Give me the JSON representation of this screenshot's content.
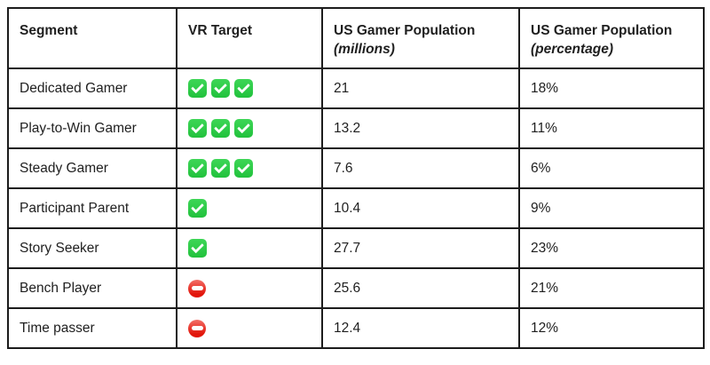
{
  "chart_data": {
    "type": "table",
    "columns": [
      {
        "label": "Segment",
        "sublabel": ""
      },
      {
        "label": "VR Target",
        "sublabel": ""
      },
      {
        "label": "US Gamer Population",
        "sublabel": "(millions)"
      },
      {
        "label": "US Gamer Population",
        "sublabel": "(percentage)"
      }
    ],
    "rows": [
      {
        "segment": "Dedicated Gamer",
        "vr_target": {
          "icon": "check",
          "count": 3
        },
        "millions": "21",
        "percentage": "18%"
      },
      {
        "segment": "Play-to-Win Gamer",
        "vr_target": {
          "icon": "check",
          "count": 3
        },
        "millions": "13.2",
        "percentage": "11%"
      },
      {
        "segment": "Steady Gamer",
        "vr_target": {
          "icon": "check",
          "count": 3
        },
        "millions": "7.6",
        "percentage": "6%"
      },
      {
        "segment": "Participant Parent",
        "vr_target": {
          "icon": "check",
          "count": 1
        },
        "millions": "10.4",
        "percentage": "9%"
      },
      {
        "segment": "Story Seeker",
        "vr_target": {
          "icon": "check",
          "count": 1
        },
        "millions": "27.7",
        "percentage": "23%"
      },
      {
        "segment": "Bench Player",
        "vr_target": {
          "icon": "no-entry",
          "count": 1
        },
        "millions": "25.6",
        "percentage": "21%"
      },
      {
        "segment": "Time passer",
        "vr_target": {
          "icon": "no-entry",
          "count": 1
        },
        "millions": "12.4",
        "percentage": "12%"
      }
    ]
  },
  "colors": {
    "check_green": "#2ecc44",
    "no_entry_red": "#e2150a",
    "border": "#1c1c1c",
    "text": "#1f1f1f",
    "background": "#ffffff"
  }
}
